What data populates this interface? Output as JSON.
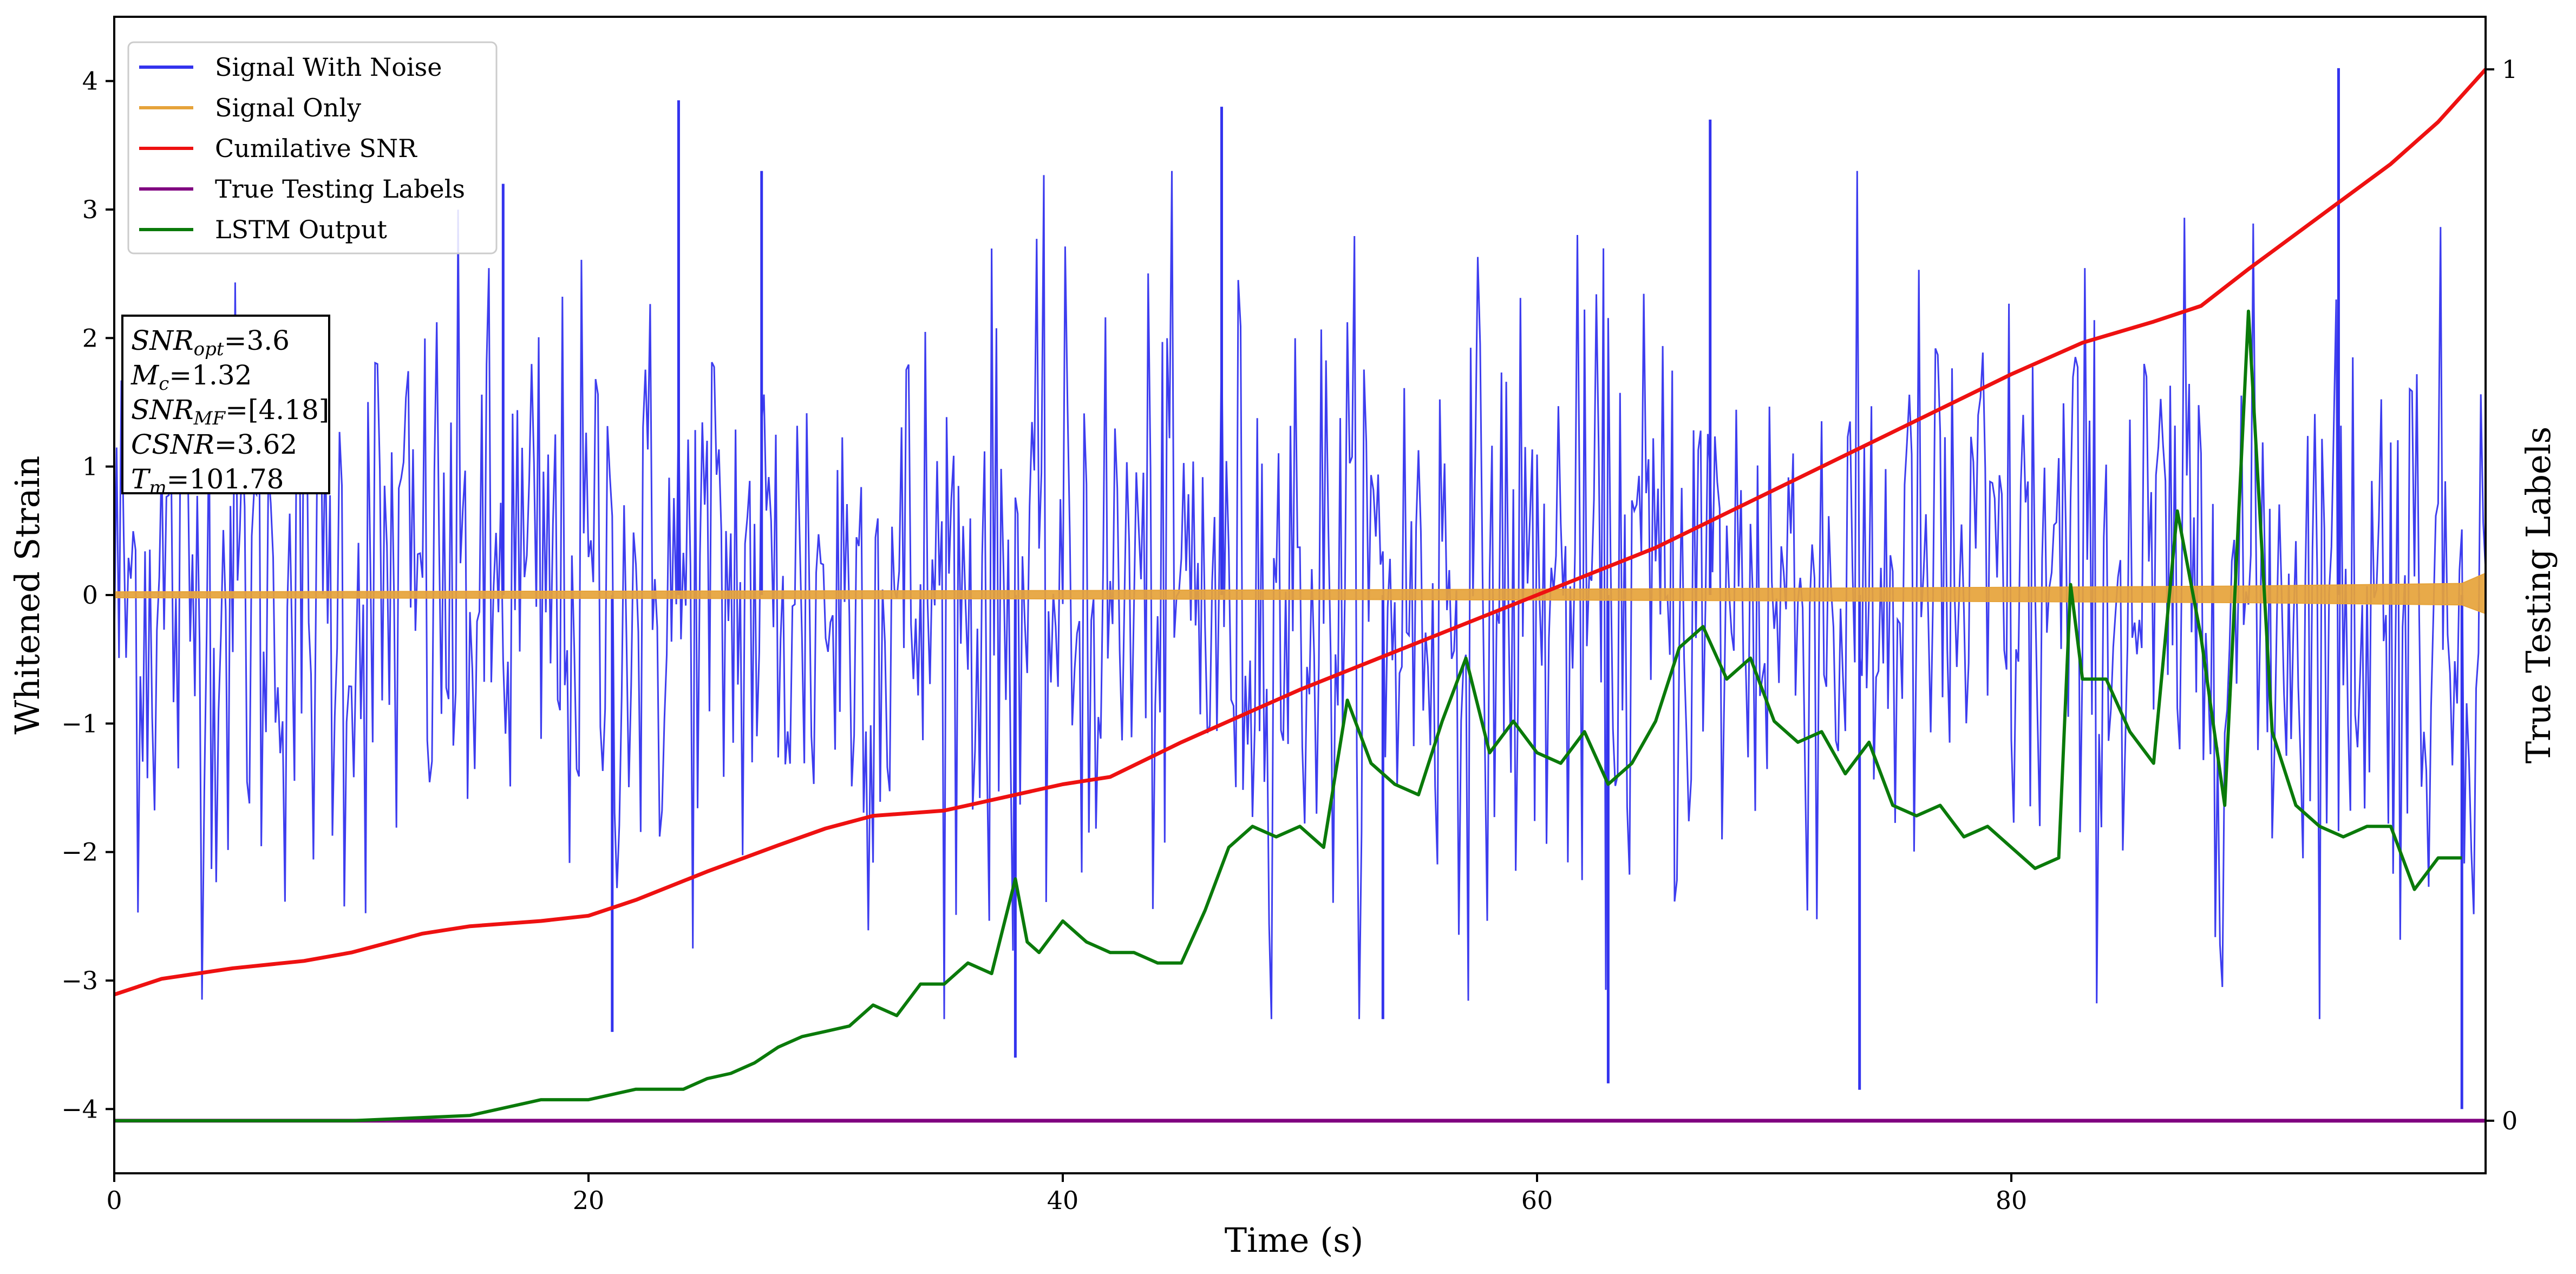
{
  "chart_data": {
    "type": "line",
    "xlabel": "Time (s)",
    "ylabel": "Whitened Strain",
    "y2label": "True Testing Labels",
    "xlim": [
      0,
      100
    ],
    "ylim": [
      -4.5,
      4.5
    ],
    "y2lim": [
      -0.05,
      1.05
    ],
    "xticks": [
      0,
      20,
      40,
      60,
      80
    ],
    "yticks": [
      -4,
      -3,
      -2,
      -1,
      0,
      1,
      2,
      3,
      4
    ],
    "y2ticks": [
      0,
      1
    ],
    "legend_position": "top-left",
    "colors": {
      "signal_with_noise": "#3333ee",
      "signal_only": "#e6a33a",
      "cumulative_snr": "#ee1111",
      "true_labels": "#800080",
      "lstm_output": "#0a7a0a"
    },
    "series": [
      {
        "name": "Signal With Noise",
        "axis": "left",
        "description_kind": "noise band",
        "sample_step": 0.1,
        "amplitude_core": 1.2,
        "peak_values_y": [
          4.1,
          3.85,
          3.8,
          3.7,
          3.2,
          3.3,
          -3.6,
          -3.8,
          -3.85,
          -4.0,
          -3.4,
          -3.3
        ]
      },
      {
        "name": "Signal Only",
        "axis": "left",
        "x": [
          0,
          20,
          40,
          60,
          80,
          90,
          99,
          100
        ],
        "values": [
          0.025,
          0.03,
          0.035,
          0.045,
          0.06,
          0.07,
          0.09,
          0.17
        ]
      },
      {
        "name": "Cumilative SNR",
        "axis": "right",
        "x": [
          0,
          2,
          5,
          8,
          10,
          13,
          15,
          18,
          20,
          22,
          25,
          28,
          30,
          32,
          35,
          38,
          40,
          42,
          45,
          48,
          50,
          55,
          60,
          65,
          70,
          75,
          80,
          83,
          86,
          88,
          90,
          93,
          96,
          98,
          100
        ],
        "values": [
          0.12,
          0.135,
          0.145,
          0.152,
          0.16,
          0.178,
          0.185,
          0.19,
          0.195,
          0.21,
          0.237,
          0.262,
          0.278,
          0.29,
          0.295,
          0.31,
          0.32,
          0.327,
          0.36,
          0.39,
          0.41,
          0.455,
          0.5,
          0.545,
          0.6,
          0.655,
          0.71,
          0.74,
          0.76,
          0.775,
          0.81,
          0.86,
          0.91,
          0.95,
          1.0
        ]
      },
      {
        "name": "True Testing Labels",
        "axis": "right",
        "x": [
          0,
          100
        ],
        "values": [
          0,
          0
        ]
      },
      {
        "name": "LSTM Output",
        "axis": "right",
        "x": [
          0,
          10,
          15,
          17,
          18,
          20,
          21,
          22,
          24,
          25,
          26,
          27,
          28,
          29,
          30,
          31,
          32,
          33,
          34,
          35,
          36,
          37,
          38,
          38.5,
          39,
          40,
          41,
          42,
          43,
          44,
          45,
          46,
          47,
          48,
          49,
          50,
          51,
          52,
          53,
          54,
          55,
          56,
          57,
          58,
          59,
          60,
          61,
          62,
          63,
          64,
          65,
          66,
          67,
          68,
          69,
          70,
          71,
          72,
          73,
          74,
          75,
          76,
          77,
          78,
          79,
          80,
          81,
          82,
          82.5,
          83,
          84,
          85,
          86,
          87,
          88,
          89,
          90,
          91,
          92,
          93,
          94,
          95,
          96,
          97,
          98,
          99
        ],
        "values": [
          0,
          0,
          0.005,
          0.015,
          0.02,
          0.02,
          0.025,
          0.03,
          0.03,
          0.04,
          0.045,
          0.055,
          0.07,
          0.08,
          0.085,
          0.09,
          0.11,
          0.1,
          0.13,
          0.13,
          0.15,
          0.14,
          0.23,
          0.17,
          0.16,
          0.19,
          0.17,
          0.16,
          0.16,
          0.15,
          0.15,
          0.2,
          0.26,
          0.28,
          0.27,
          0.28,
          0.26,
          0.4,
          0.34,
          0.32,
          0.31,
          0.38,
          0.44,
          0.35,
          0.38,
          0.35,
          0.34,
          0.37,
          0.32,
          0.34,
          0.38,
          0.45,
          0.47,
          0.42,
          0.44,
          0.38,
          0.36,
          0.37,
          0.33,
          0.36,
          0.3,
          0.29,
          0.3,
          0.27,
          0.28,
          0.26,
          0.24,
          0.25,
          0.51,
          0.42,
          0.42,
          0.37,
          0.34,
          0.58,
          0.46,
          0.3,
          0.77,
          0.37,
          0.3,
          0.28,
          0.27,
          0.28,
          0.28,
          0.22,
          0.25,
          0.25
        ]
      }
    ],
    "annotation": {
      "lines": [
        {
          "base": "SNR",
          "sub": "opt",
          "rest": "=3.6"
        },
        {
          "base": "M",
          "sub": "c",
          "rest": "=1.32"
        },
        {
          "base": "SNR",
          "sub": "MF",
          "rest": "=[4.18]"
        },
        {
          "base": "CSNR",
          "sub": "",
          "rest": "=3.62"
        },
        {
          "base": "T",
          "sub": "m",
          "rest": "=101.78"
        }
      ]
    }
  }
}
